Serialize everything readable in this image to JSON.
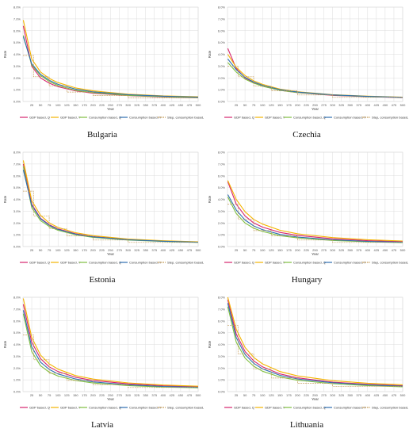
{
  "colors": {
    "gdp_q": "#d6246e",
    "gdp_y": "#f4b400",
    "cons_q": "#7fbf3f",
    "cons_y": "#2f6fb0",
    "step": "#c8a060",
    "grid": "#dcdcdc"
  },
  "chart_data": [
    {
      "type": "line",
      "country": "Bulgaria",
      "xlabel": "Year",
      "ylabel": "Rate",
      "ylim": [
        0,
        8
      ],
      "yticks": [
        "0.0%",
        "1.0%",
        "2.0%",
        "3.0%",
        "4.0%",
        "5.0%",
        "6.0%",
        "7.0%",
        "8.0%"
      ],
      "xticks": [
        "25",
        "50",
        "75",
        "100",
        "125",
        "150",
        "175",
        "200",
        "225",
        "250",
        "275",
        "300",
        "325",
        "350",
        "375",
        "400",
        "425",
        "450",
        "475",
        "500"
      ],
      "legend": [
        "GDP based, Q",
        "GDP based, Y",
        "Consumption based, Q",
        "Consumption based, Y",
        "Step, consumption based, Y"
      ],
      "series": [
        {
          "name": "GDP based, Q",
          "x": [
            1,
            25,
            50,
            75,
            100,
            150,
            200,
            300,
            400,
            500
          ],
          "values": [
            6.4,
            3.0,
            2.0,
            1.55,
            1.25,
            0.9,
            0.7,
            0.5,
            0.38,
            0.3
          ]
        },
        {
          "name": "GDP based, Y",
          "x": [
            1,
            25,
            50,
            75,
            100,
            150,
            200,
            300,
            400,
            500
          ],
          "values": [
            6.9,
            3.6,
            2.5,
            1.95,
            1.6,
            1.15,
            0.9,
            0.62,
            0.48,
            0.4
          ]
        },
        {
          "name": "Consumption based, Q",
          "x": [
            1,
            25,
            50,
            75,
            100,
            150,
            200,
            300,
            400,
            500
          ],
          "values": [
            5.6,
            3.1,
            2.2,
            1.7,
            1.35,
            0.95,
            0.75,
            0.52,
            0.4,
            0.32
          ]
        },
        {
          "name": "Consumption based, Y",
          "x": [
            1,
            25,
            50,
            75,
            100,
            150,
            200,
            300,
            400,
            500
          ],
          "values": [
            5.5,
            3.2,
            2.3,
            1.8,
            1.45,
            1.05,
            0.82,
            0.58,
            0.45,
            0.37
          ]
        },
        {
          "name": "Step, consumption based, Y",
          "step": true,
          "x": [
            0,
            30,
            30,
            75,
            75,
            125,
            125,
            200,
            200,
            300,
            300,
            500
          ],
          "values": [
            3.9,
            3.9,
            2.1,
            2.1,
            1.3,
            1.3,
            0.8,
            0.8,
            0.5,
            0.5,
            0.3,
            0.3
          ]
        }
      ]
    },
    {
      "type": "line",
      "country": "Czechia",
      "xlabel": "Year",
      "ylabel": "Rate",
      "ylim": [
        0,
        8
      ],
      "yticks": [
        "0.0%",
        "1.0%",
        "2.0%",
        "3.0%",
        "4.0%",
        "5.0%",
        "6.0%",
        "7.0%",
        "8.0%"
      ],
      "xticks": [
        "25",
        "50",
        "75",
        "100",
        "125",
        "150",
        "175",
        "200",
        "225",
        "250",
        "275",
        "300",
        "325",
        "350",
        "375",
        "400",
        "425",
        "450",
        "475",
        "500"
      ],
      "legend": [
        "GDP based, Q",
        "GDP based, Y",
        "Consumption based, Q",
        "Consumption based, Y",
        "Step, consumption based, Y"
      ],
      "series": [
        {
          "name": "GDP based, Q",
          "x": [
            1,
            25,
            50,
            75,
            100,
            150,
            200,
            300,
            400,
            500
          ],
          "values": [
            4.5,
            2.8,
            2.0,
            1.6,
            1.3,
            0.95,
            0.75,
            0.52,
            0.4,
            0.32
          ]
        },
        {
          "name": "GDP based, Y",
          "x": [
            1,
            25,
            50,
            75,
            100,
            150,
            200,
            300,
            400,
            500
          ],
          "values": [
            4.0,
            2.9,
            2.2,
            1.75,
            1.45,
            1.05,
            0.83,
            0.58,
            0.45,
            0.37
          ]
        },
        {
          "name": "Consumption based, Q",
          "x": [
            1,
            25,
            50,
            75,
            100,
            150,
            200,
            300,
            400,
            500
          ],
          "values": [
            3.3,
            2.5,
            1.9,
            1.55,
            1.3,
            0.95,
            0.76,
            0.54,
            0.42,
            0.34
          ]
        },
        {
          "name": "Consumption based, Y",
          "x": [
            1,
            25,
            50,
            75,
            100,
            150,
            200,
            300,
            400,
            500
          ],
          "values": [
            3.6,
            2.7,
            2.05,
            1.65,
            1.38,
            1.0,
            0.8,
            0.56,
            0.43,
            0.35
          ]
        },
        {
          "name": "Step, consumption based, Y",
          "step": true,
          "x": [
            0,
            30,
            30,
            75,
            75,
            125,
            125,
            200,
            200,
            300,
            300,
            500
          ],
          "values": [
            3.0,
            3.0,
            2.1,
            2.1,
            1.3,
            1.3,
            0.9,
            0.9,
            0.55,
            0.55,
            0.35,
            0.35
          ]
        }
      ]
    },
    {
      "type": "line",
      "country": "Estonia",
      "xlabel": "Year",
      "ylabel": "Rate",
      "ylim": [
        0,
        8
      ],
      "yticks": [
        "0.0%",
        "1.0%",
        "2.0%",
        "3.0%",
        "4.0%",
        "5.0%",
        "6.0%",
        "7.0%",
        "8.0%"
      ],
      "xticks": [
        "25",
        "50",
        "75",
        "100",
        "125",
        "150",
        "175",
        "200",
        "225",
        "250",
        "275",
        "300",
        "325",
        "350",
        "375",
        "400",
        "425",
        "450",
        "475",
        "500"
      ],
      "legend": [
        "GDP based, Q",
        "GDP based, Y",
        "Consumption based, Q",
        "Consumption based, Y",
        "Step, consumption based, Y"
      ],
      "series": [
        {
          "name": "GDP based, Q",
          "x": [
            1,
            25,
            50,
            75,
            100,
            150,
            200,
            300,
            400,
            500
          ],
          "values": [
            7.0,
            3.6,
            2.4,
            1.85,
            1.5,
            1.08,
            0.85,
            0.6,
            0.46,
            0.38
          ]
        },
        {
          "name": "GDP based, Y",
          "x": [
            1,
            25,
            50,
            75,
            100,
            150,
            200,
            300,
            400,
            500
          ],
          "values": [
            7.3,
            3.9,
            2.65,
            2.0,
            1.62,
            1.17,
            0.92,
            0.64,
            0.49,
            0.4
          ]
        },
        {
          "name": "Consumption based, Q",
          "x": [
            1,
            25,
            50,
            75,
            100,
            150,
            200,
            300,
            400,
            500
          ],
          "values": [
            6.8,
            3.3,
            2.2,
            1.7,
            1.38,
            1.0,
            0.78,
            0.55,
            0.43,
            0.35
          ]
        },
        {
          "name": "Consumption based, Y",
          "x": [
            1,
            25,
            50,
            75,
            100,
            150,
            200,
            300,
            400,
            500
          ],
          "values": [
            6.5,
            3.5,
            2.35,
            1.8,
            1.45,
            1.05,
            0.82,
            0.58,
            0.45,
            0.37
          ]
        },
        {
          "name": "Step, consumption based, Y",
          "step": true,
          "x": [
            0,
            30,
            30,
            75,
            75,
            125,
            125,
            200,
            200,
            300,
            300,
            500
          ],
          "values": [
            4.7,
            4.7,
            2.6,
            2.6,
            1.5,
            1.5,
            0.9,
            0.9,
            0.55,
            0.55,
            0.35,
            0.35
          ]
        }
      ]
    },
    {
      "type": "line",
      "country": "Hungary",
      "xlabel": "Year",
      "ylabel": "Rate",
      "ylim": [
        0,
        8
      ],
      "yticks": [
        "0.0%",
        "1.0%",
        "2.0%",
        "3.0%",
        "4.0%",
        "5.0%",
        "6.0%",
        "7.0%",
        "8.0%"
      ],
      "xticks": [
        "25",
        "50",
        "75",
        "100",
        "125",
        "150",
        "175",
        "200",
        "225",
        "250",
        "275",
        "300",
        "325",
        "350",
        "375",
        "400",
        "425",
        "450",
        "475",
        "500"
      ],
      "legend": [
        "GDP based, Q",
        "GDP based, Y",
        "Consumption based, Q",
        "Consumption based, Y",
        "Step, consumption based, Y"
      ],
      "series": [
        {
          "name": "GDP based, Q",
          "x": [
            1,
            25,
            50,
            75,
            100,
            150,
            200,
            300,
            400,
            500
          ],
          "values": [
            5.5,
            3.6,
            2.6,
            2.0,
            1.65,
            1.2,
            0.95,
            0.66,
            0.5,
            0.42
          ]
        },
        {
          "name": "GDP based, Y",
          "x": [
            1,
            25,
            50,
            75,
            100,
            150,
            200,
            300,
            400,
            500
          ],
          "values": [
            5.6,
            4.0,
            2.95,
            2.3,
            1.9,
            1.38,
            1.08,
            0.76,
            0.58,
            0.47
          ]
        },
        {
          "name": "Consumption based, Q",
          "x": [
            1,
            25,
            50,
            75,
            100,
            150,
            200,
            300,
            400,
            500
          ],
          "values": [
            4.2,
            2.8,
            2.0,
            1.55,
            1.28,
            0.92,
            0.73,
            0.52,
            0.4,
            0.33
          ]
        },
        {
          "name": "Consumption based, Y",
          "x": [
            1,
            25,
            50,
            75,
            100,
            150,
            200,
            300,
            400,
            500
          ],
          "values": [
            4.4,
            3.1,
            2.25,
            1.75,
            1.43,
            1.03,
            0.81,
            0.57,
            0.44,
            0.36
          ]
        },
        {
          "name": "Step, consumption based, Y",
          "step": true,
          "x": [
            0,
            30,
            30,
            75,
            75,
            125,
            125,
            200,
            200,
            300,
            300,
            500
          ],
          "values": [
            3.6,
            3.6,
            2.3,
            2.3,
            1.35,
            1.35,
            0.9,
            0.9,
            0.55,
            0.55,
            0.35,
            0.35
          ]
        }
      ]
    },
    {
      "type": "line",
      "country": "Latvia",
      "xlabel": "Year",
      "ylabel": "Rate",
      "ylim": [
        0,
        8
      ],
      "yticks": [
        "0.0%",
        "1.0%",
        "2.0%",
        "3.0%",
        "4.0%",
        "5.0%",
        "6.0%",
        "7.0%",
        "8.0%"
      ],
      "xticks": [
        "25",
        "50",
        "75",
        "100",
        "125",
        "150",
        "175",
        "200",
        "225",
        "250",
        "275",
        "300",
        "325",
        "350",
        "375",
        "400",
        "425",
        "450",
        "475",
        "500"
      ],
      "legend": [
        "GDP based, Q",
        "GDP based, Y",
        "Consumption based, Q",
        "Consumption based, Y",
        "Step, consumption based, Y"
      ],
      "series": [
        {
          "name": "GDP based, Q",
          "x": [
            1,
            25,
            50,
            75,
            100,
            150,
            200,
            300,
            400,
            500
          ],
          "values": [
            7.4,
            4.2,
            2.8,
            2.1,
            1.7,
            1.22,
            0.95,
            0.66,
            0.5,
            0.41
          ]
        },
        {
          "name": "GDP based, Y",
          "x": [
            1,
            25,
            50,
            75,
            100,
            150,
            200,
            300,
            400,
            500
          ],
          "values": [
            7.9,
            4.6,
            3.1,
            2.35,
            1.9,
            1.36,
            1.06,
            0.74,
            0.56,
            0.46
          ]
        },
        {
          "name": "Consumption based, Q",
          "x": [
            1,
            25,
            50,
            75,
            100,
            150,
            200,
            300,
            400,
            500
          ],
          "values": [
            6.6,
            3.4,
            2.2,
            1.65,
            1.32,
            0.94,
            0.73,
            0.51,
            0.39,
            0.32
          ]
        },
        {
          "name": "Consumption based, Y",
          "x": [
            1,
            25,
            50,
            75,
            100,
            150,
            200,
            300,
            400,
            500
          ],
          "values": [
            6.9,
            3.8,
            2.5,
            1.88,
            1.5,
            1.07,
            0.83,
            0.58,
            0.44,
            0.36
          ]
        },
        {
          "name": "Step, consumption based, Y",
          "step": true,
          "x": [
            0,
            30,
            30,
            75,
            75,
            125,
            125,
            200,
            200,
            300,
            300,
            500
          ],
          "values": [
            4.8,
            4.8,
            2.7,
            2.7,
            1.55,
            1.55,
            0.95,
            0.95,
            0.6,
            0.6,
            0.35,
            0.35
          ]
        }
      ]
    },
    {
      "type": "line",
      "country": "Lithuania",
      "xlabel": "Year",
      "ylabel": "Rate",
      "ylim": [
        0,
        8
      ],
      "yticks": [
        "0.0%",
        "1.0%",
        "2.0%",
        "3.0%",
        "4.0%",
        "5.0%",
        "6.0%",
        "7.0%",
        "8.0%"
      ],
      "xticks": [
        "25",
        "50",
        "75",
        "100",
        "125",
        "150",
        "175",
        "200",
        "225",
        "250",
        "275",
        "300",
        "325",
        "350",
        "375",
        "400",
        "425",
        "450",
        "475",
        "500"
      ],
      "legend": [
        "GDP based, Q",
        "GDP based, Y",
        "Consumption based, Q",
        "Consumption based, Y",
        "Step, consumption based, Y"
      ],
      "series": [
        {
          "name": "GDP based, Q",
          "x": [
            1,
            25,
            50,
            75,
            100,
            150,
            200,
            300,
            400,
            500
          ],
          "values": [
            7.8,
            4.9,
            3.4,
            2.6,
            2.1,
            1.5,
            1.17,
            0.81,
            0.62,
            0.5
          ]
        },
        {
          "name": "GDP based, Y",
          "x": [
            1,
            25,
            50,
            75,
            100,
            150,
            200,
            300,
            400,
            500
          ],
          "values": [
            8.0,
            5.3,
            3.75,
            2.9,
            2.35,
            1.7,
            1.33,
            0.93,
            0.71,
            0.58
          ]
        },
        {
          "name": "Consumption based, Q",
          "x": [
            1,
            25,
            50,
            75,
            100,
            150,
            200,
            300,
            400,
            500
          ],
          "values": [
            7.2,
            4.2,
            2.85,
            2.15,
            1.73,
            1.24,
            0.96,
            0.67,
            0.51,
            0.41
          ]
        },
        {
          "name": "Consumption based, Y",
          "x": [
            1,
            25,
            50,
            75,
            100,
            150,
            200,
            300,
            400,
            500
          ],
          "values": [
            7.5,
            4.6,
            3.15,
            2.4,
            1.93,
            1.38,
            1.07,
            0.75,
            0.57,
            0.46
          ]
        },
        {
          "name": "Step, consumption based, Y",
          "step": true,
          "x": [
            0,
            30,
            30,
            75,
            75,
            125,
            125,
            200,
            200,
            300,
            300,
            500
          ],
          "values": [
            5.6,
            5.6,
            3.2,
            3.2,
            1.9,
            1.9,
            1.15,
            1.15,
            0.7,
            0.7,
            0.45,
            0.45
          ]
        }
      ]
    }
  ]
}
